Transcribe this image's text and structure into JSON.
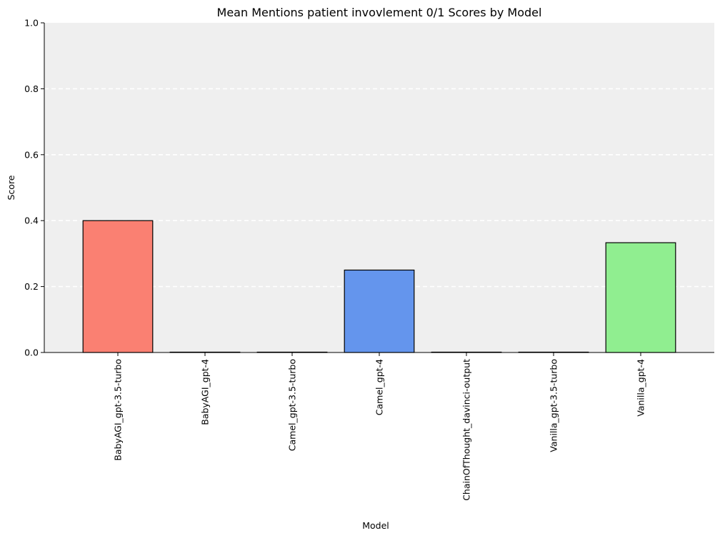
{
  "chart_data": {
    "type": "bar",
    "title": "Mean Mentions patient invovlement 0/1 Scores by Model",
    "xlabel": "Model",
    "ylabel": "Score",
    "ylim": [
      0,
      1
    ],
    "yticks": [
      "0.0",
      "0.2",
      "0.4",
      "0.6",
      "0.8",
      "1.0"
    ],
    "categories": [
      "BabyAGI_gpt-3.5-turbo",
      "BabyAGI_gpt-4",
      "Camel_gpt-3.5-turbo",
      "Camel_gpt-4",
      "ChainOfThought_davinci-output",
      "Vanilla_gpt-3.5-turbo",
      "Vanilla_gpt-4"
    ],
    "values": [
      0.4,
      0.0,
      0.0,
      0.25,
      0.0,
      0.0,
      0.333
    ],
    "colors": [
      "#fa8072",
      "#fa8072",
      "#fa8072",
      "#6495ed",
      "#6495ed",
      "#90ee90",
      "#90ee90"
    ],
    "grid": "y-dashed",
    "background": "#efefef",
    "bar_edge_color": "#000000",
    "grid_color": "#ffffff"
  }
}
